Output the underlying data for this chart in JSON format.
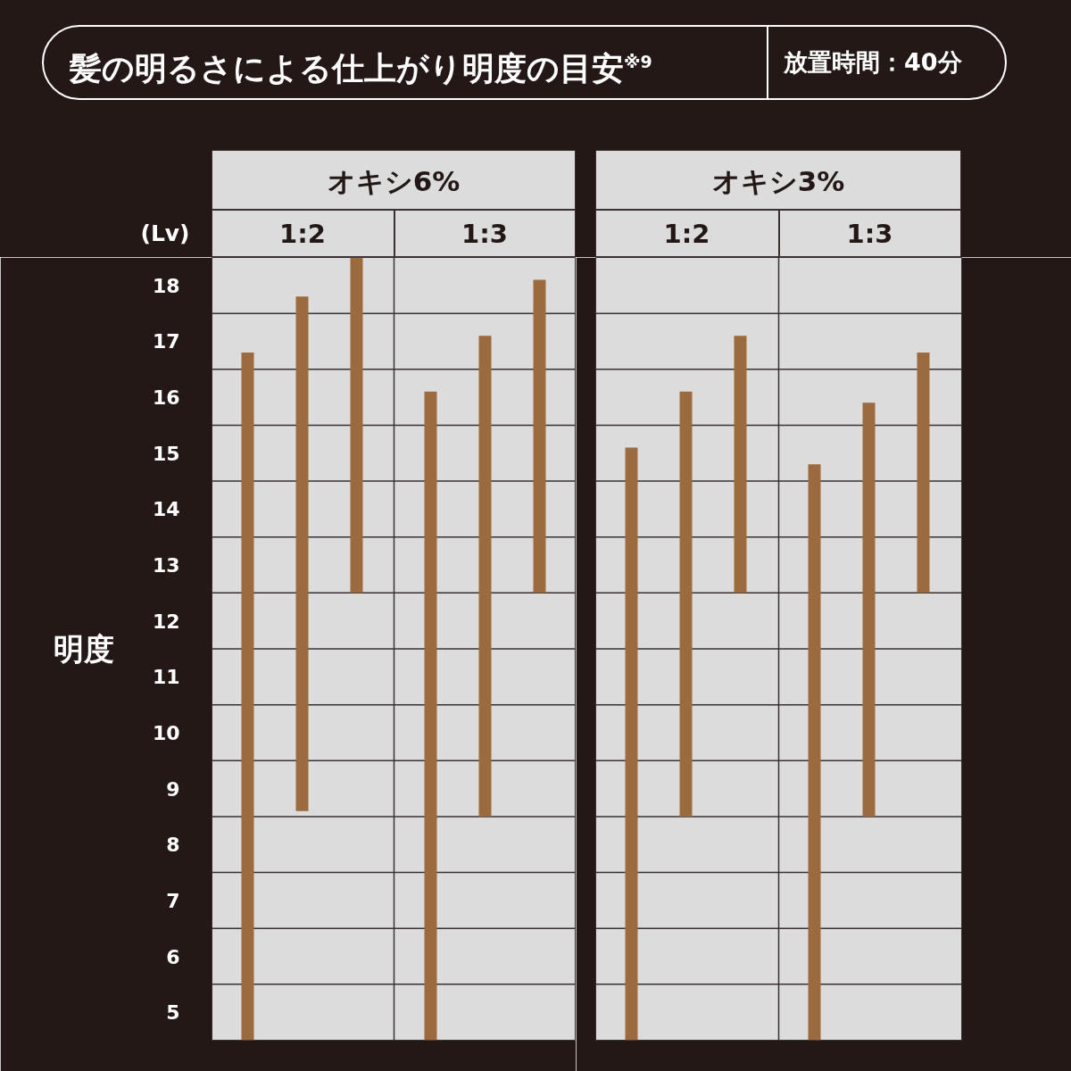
{
  "chart_data": {
    "type": "bar",
    "title": "髪の明るさによる仕上がり明度の目安$^{※9}$",
    "subtitle": "放置時間：40分",
    "ylabel": "明度",
    "annotations": [
      "(Lv)",
      "オキシ6%",
      "オキシ3%",
      "1:2",
      "1:3",
      "1:2",
      "1:3"
    ],
    "categories": [
      null,
      null,
      null,
      null,
      null,
      null,
      null,
      null,
      null,
      null,
      null,
      null
    ],
    "base": [
      4.5,
      8.6,
      12.5,
      4.5,
      8.5,
      12.5,
      4.5,
      8.5,
      12.5,
      4.5,
      8.5,
      12.5
    ],
    "values": [
      12.3,
      9.2,
      6.0,
      11.6,
      8.6,
      5.6,
      10.6,
      7.6,
      4.6,
      10.3,
      7.4,
      4.3
    ],
    "color": "#9b6a3f",
    "ylim": [
      4.5,
      18.5
    ],
    "yticks": [
      5,
      6,
      7,
      8,
      9,
      10,
      11,
      12,
      13,
      14,
      15,
      16,
      17,
      18
    ],
    "tick_labels": "y",
    "ref_lines": [
      {
        "axis": "y",
        "value": 5.5,
        "color": "#3a3030"
      },
      {
        "axis": "y",
        "value": 6.5,
        "color": "#3a3030"
      },
      {
        "axis": "y",
        "value": 7.5,
        "color": "#3a3030"
      },
      {
        "axis": "y",
        "value": 8.5,
        "color": "#3a3030"
      },
      {
        "axis": "y",
        "value": 9.5,
        "color": "#3a3030"
      },
      {
        "axis": "y",
        "value": 10.5,
        "color": "#3a3030"
      },
      {
        "axis": "y",
        "value": 11.5,
        "color": "#3a3030"
      },
      {
        "axis": "y",
        "value": 12.5,
        "color": "#3a3030"
      },
      {
        "axis": "y",
        "value": 13.5,
        "color": "#3a3030"
      },
      {
        "axis": "y",
        "value": 14.5,
        "color": "#3a3030"
      },
      {
        "axis": "y",
        "value": 15.5,
        "color": "#3a3030"
      },
      {
        "axis": "y",
        "value": 16.5,
        "color": "#3a3030"
      },
      {
        "axis": "y",
        "value": 17.5,
        "color": "#3a3030"
      }
    ]
  }
}
